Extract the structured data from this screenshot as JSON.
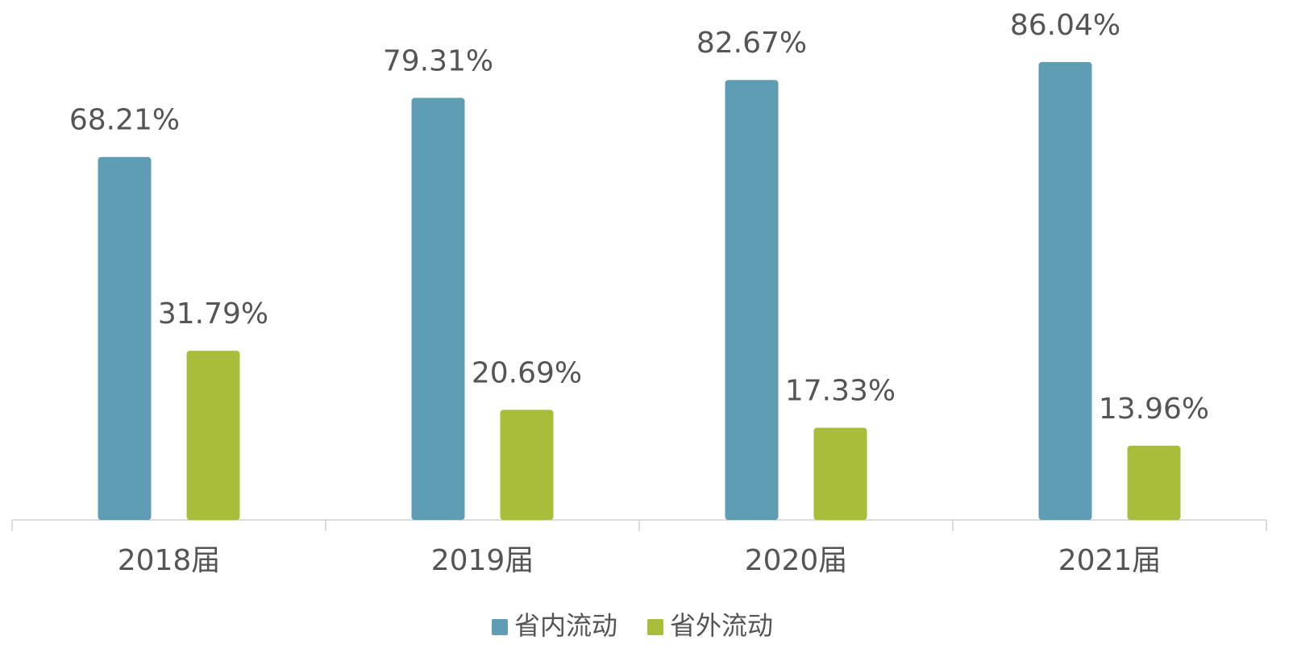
{
  "chart_data": {
    "type": "bar",
    "categories": [
      "2018届",
      "2019届",
      "2020届",
      "2021届"
    ],
    "series": [
      {
        "name": "省内流动",
        "color": "#5e9db3",
        "values": [
          68.21,
          79.31,
          82.67,
          86.04
        ],
        "value_labels": [
          "68.21%",
          "79.31%",
          "82.67%",
          "86.04%"
        ]
      },
      {
        "name": "省外流动",
        "color": "#a9bd3b",
        "values": [
          31.79,
          20.69,
          17.33,
          13.96
        ],
        "value_labels": [
          "31.79%",
          "20.69%",
          "17.33%",
          "13.96%"
        ]
      }
    ],
    "legend": "bottom"
  }
}
